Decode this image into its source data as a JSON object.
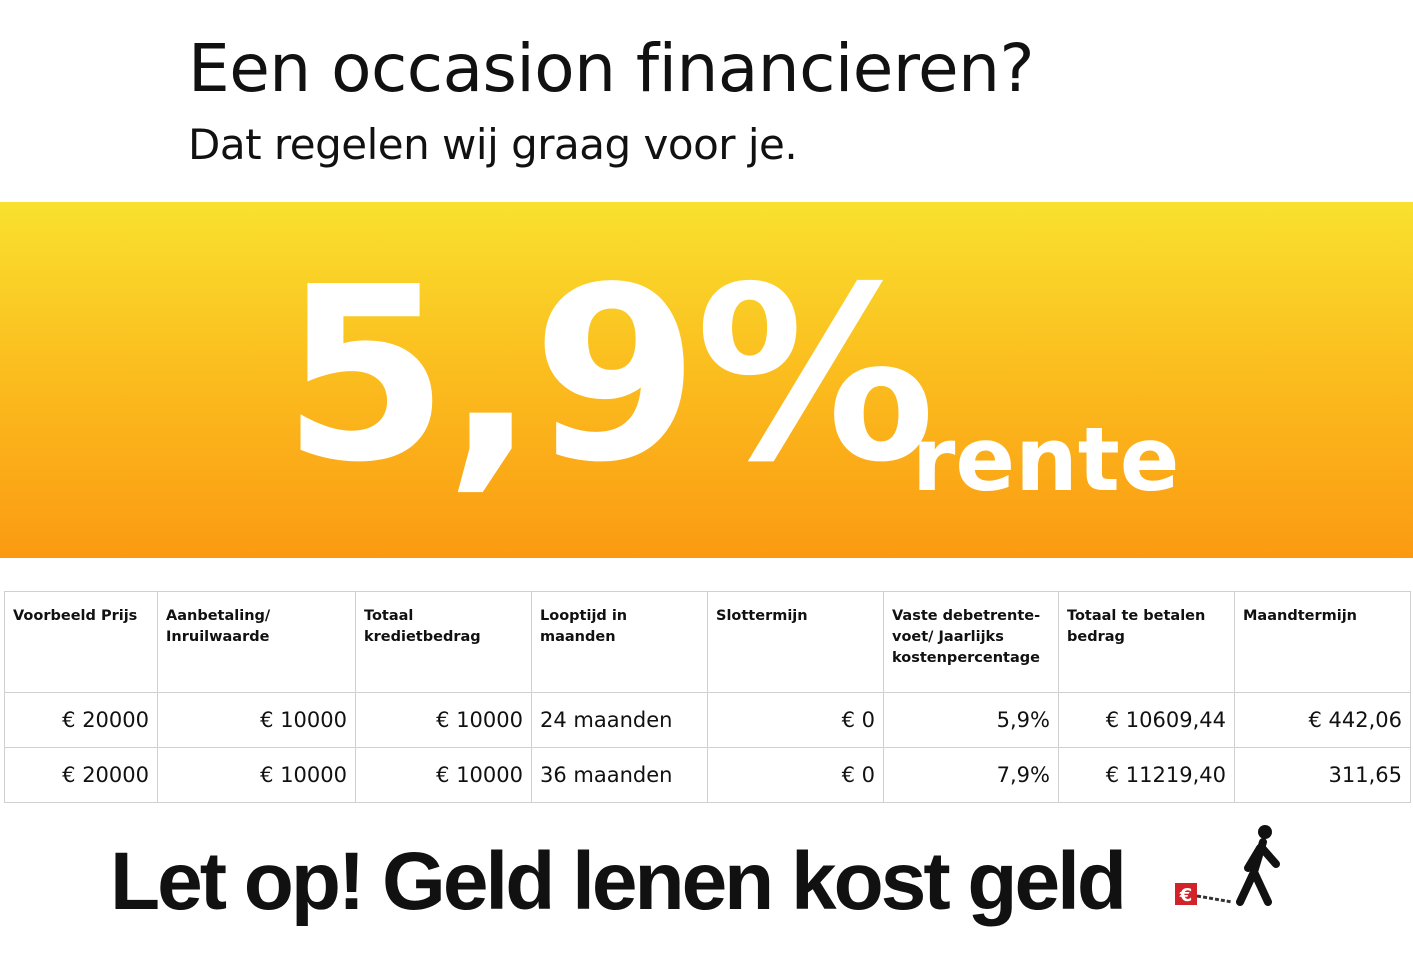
{
  "header": {
    "title": "Een occasion financieren?",
    "subtitle": "Dat regelen wij graag voor je."
  },
  "promo": {
    "rate": "5,9%",
    "rate_suffix": "rente",
    "colors": {
      "band_top": "#f9e12e",
      "band_bottom": "#fb9a12"
    }
  },
  "table": {
    "headers": [
      "Voorbeeld Prijs",
      "Aanbetaling/ Inruilwaarde",
      "Totaal kredietbedrag",
      "Looptijd in maanden",
      "Slottermijn",
      "Vaste debetrente-voet/ Jaarlijks kostenpercentage",
      "Totaal te betalen bedrag",
      "Maandtermijn"
    ],
    "rows": [
      [
        "€ 20000",
        "€ 10000",
        "€ 10000",
        "24 maanden",
        "€ 0",
        "5,9%",
        "€ 10609,44",
        "€ 442,06"
      ],
      [
        "€ 20000",
        "€ 10000",
        "€ 10000",
        "36 maanden",
        "€ 0",
        "7,9%",
        "€ 11219,40",
        "311,65"
      ]
    ]
  },
  "footer": {
    "warning": "Let op! Geld lenen kost geld",
    "logo_icon": "euro-ball-and-chain-walking-person-icon"
  }
}
